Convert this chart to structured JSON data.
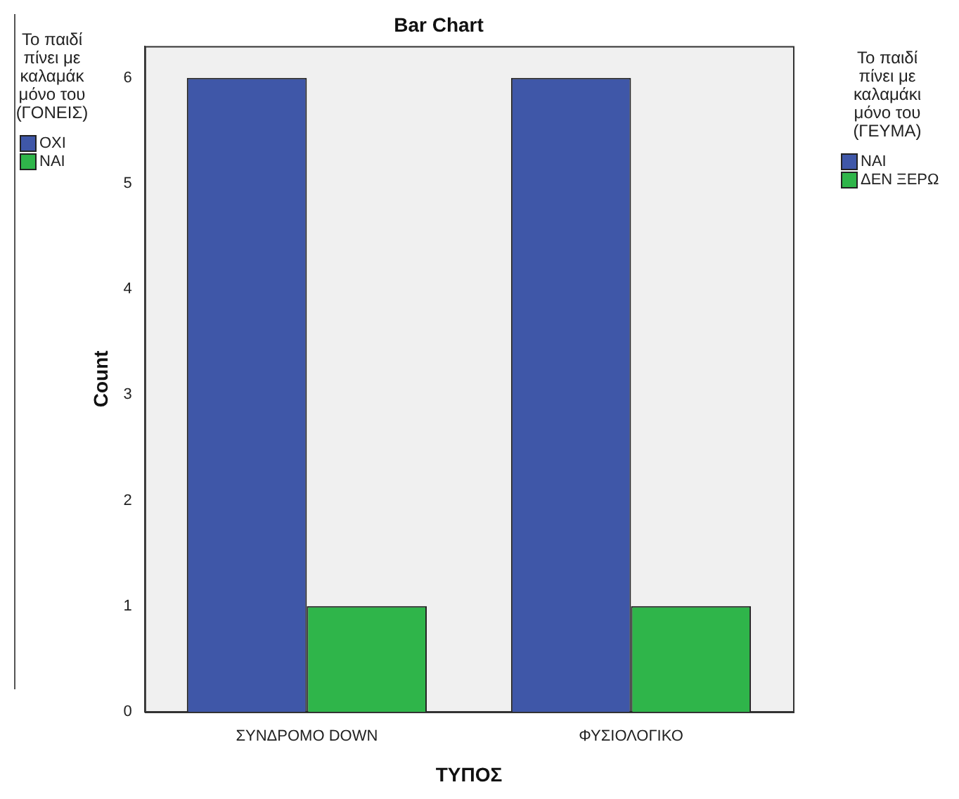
{
  "chart_data": {
    "type": "bar",
    "title": "Bar Chart",
    "xlabel": "ΤΥΠΟΣ",
    "ylabel": "Count",
    "categories": [
      "ΣΥΝΔΡΟΜΟ DOWN",
      "ΦΥΣΙΟΛΟΓΙΚΟ"
    ],
    "series": [
      {
        "name": "ΝΑΙ",
        "color": "#3f57a8",
        "values": [
          6,
          6
        ]
      },
      {
        "name": "ΔΕΝ ΞΕΡΩ",
        "color": "#2fb54a",
        "values": [
          1,
          1
        ]
      }
    ],
    "legend_title": "Το παιδί πίνει με καλαμάκι μόνο του (ΓΕΥΜΑ)",
    "legend": "right",
    "ylim": [
      0,
      6.3
    ],
    "yticks": [
      0,
      1,
      2,
      3,
      4,
      5,
      6
    ],
    "grid": false,
    "annotations": [
      "Το παιδί πίνει με καλαμάκ μόνο του (ΓΟΝΕΙΣ)",
      "ΟΧΙ",
      "ΝΑΙ"
    ]
  }
}
